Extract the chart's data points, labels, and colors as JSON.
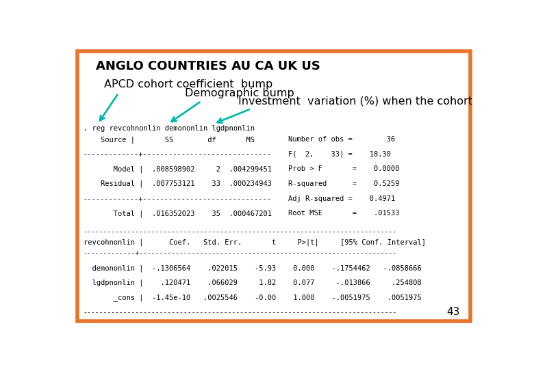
{
  "bg_color": "#ffffff",
  "border_color": "#e8732a",
  "title": "ANGLO COUNTRIES AU CA UK US",
  "label1": "APCD cohort coefficient  bump",
  "label2": "Demographic bump",
  "label3": "Investment  variation (%) when the cohort",
  "cmd_line": ". reg revcohnonlin demononlin lgdpnonlin",
  "stata_lines": [
    "    Source |       SS        df       MS",
    "-------------+------------------------------",
    "       Model |  .008598902     2  .004299451",
    "    Residual |  .007753121    33  .000234943",
    "-------------+------------------------------",
    "       Total |  .016352023    35  .000467201"
  ],
  "right_stats": [
    "Number of obs =        36",
    "F(  2,    33) =    18.30",
    "Prob > F       =    0.0000",
    "R-squared      =    0.5259",
    "Adj R-squared =    0.4971",
    "Root MSE       =    .01533"
  ],
  "sep_long": "------------------------------------------------------------------------------",
  "coef_header": "revcohnonlin |      Coef.   Std. Err.       t     P>|t|     [95% Conf. Interval]",
  "coef_sep": "-------------+----------------------------------------------------------------",
  "coef_rows": [
    "  demononlin |  -.1306564    .022015    -5.93    0.000    -.1754462   -.0858666",
    "  lgdpnonlin |    .120471    .066029     1.82    0.077     -.013866     .254808",
    "       _cons |  -1.45e-10   .0025546    -0.00    1.000    -.0051975    .0051975"
  ],
  "page_num": "43",
  "arrow_color": "#00b8b0",
  "mono_fs": 7.5,
  "label_fs": 11.5
}
